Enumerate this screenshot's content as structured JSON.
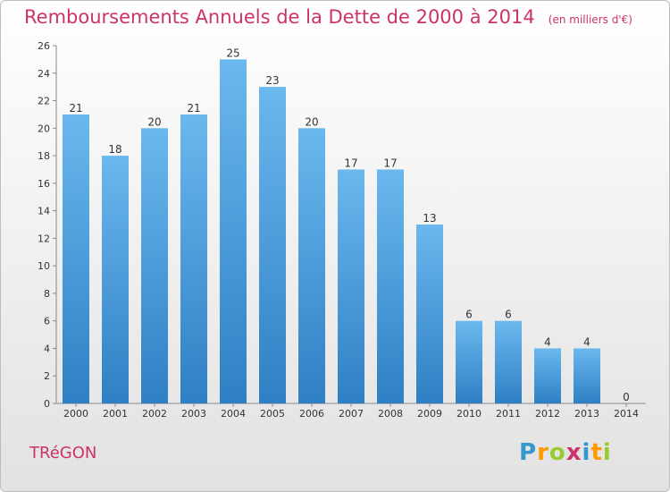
{
  "header": {
    "title": "Remboursements Annuels de la Dette de 2000 à 2014",
    "unit": "(en milliers d'€)"
  },
  "footer": {
    "commune": "TRéGON",
    "logo": "Proxiti"
  },
  "colors": {
    "title": "#cc3366",
    "bar_top": "#6bb8ee",
    "bar_bottom": "#2f7fc4",
    "grid": "#c8c8c8"
  },
  "chart_data": {
    "type": "bar",
    "title": "Remboursements Annuels de la Dette de 2000 à 2014",
    "xlabel": "",
    "ylabel": "",
    "categories": [
      "2000",
      "2001",
      "2002",
      "2003",
      "2004",
      "2005",
      "2006",
      "2007",
      "2008",
      "2009",
      "2010",
      "2011",
      "2012",
      "2013",
      "2014"
    ],
    "values": [
      21,
      18,
      20,
      21,
      25,
      23,
      20,
      17,
      17,
      13,
      6,
      6,
      4,
      4,
      0
    ],
    "ylim": [
      0,
      26
    ],
    "yticks": [
      0,
      2,
      4,
      6,
      8,
      10,
      12,
      14,
      16,
      18,
      20,
      22,
      24,
      26
    ],
    "grid": false
  }
}
